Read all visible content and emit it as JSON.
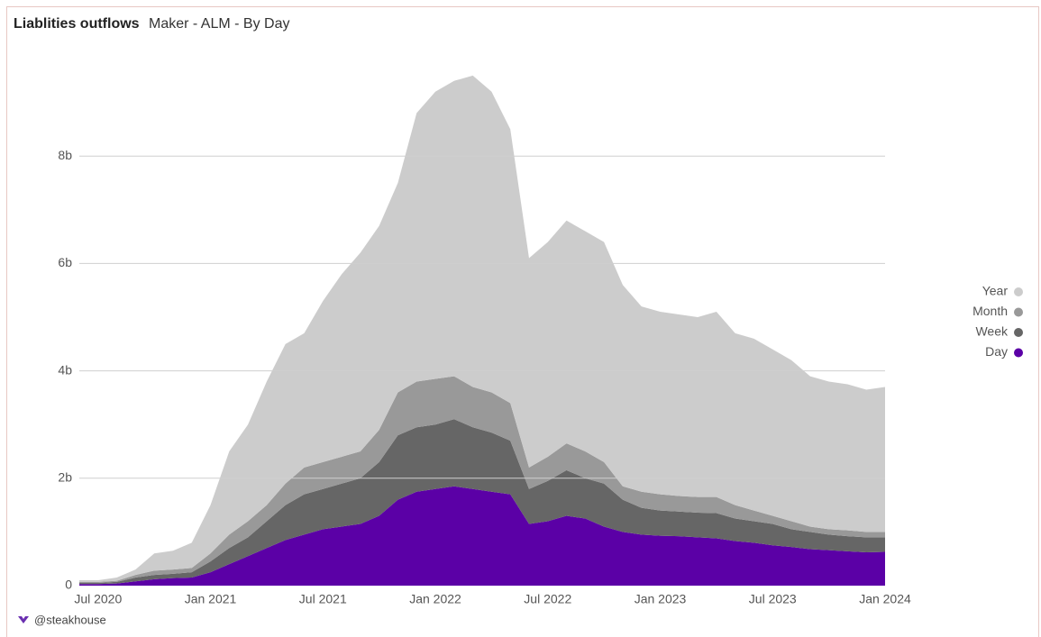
{
  "chart_data": {
    "type": "area",
    "stacked": true,
    "title": "Liablities outflows",
    "subtitle": "Maker - ALM - By Day",
    "footer": "@steakhouse",
    "x": [
      "2020-06",
      "2020-07",
      "2020-08",
      "2020-09",
      "2020-10",
      "2020-11",
      "2020-12",
      "2021-01",
      "2021-02",
      "2021-03",
      "2021-04",
      "2021-05",
      "2021-06",
      "2021-07",
      "2021-08",
      "2021-09",
      "2021-10",
      "2021-11",
      "2021-12",
      "2022-01",
      "2022-02",
      "2022-03",
      "2022-04",
      "2022-05",
      "2022-06",
      "2022-07",
      "2022-08",
      "2022-09",
      "2022-10",
      "2022-11",
      "2022-12",
      "2023-01",
      "2023-02",
      "2023-03",
      "2023-04",
      "2023-05",
      "2023-06",
      "2023-07",
      "2023-08",
      "2023-09",
      "2023-10",
      "2023-11",
      "2023-12",
      "2024-01"
    ],
    "series": [
      {
        "name": "Day",
        "color": "#5b00a6",
        "values": [
          0.03,
          0.03,
          0.04,
          0.08,
          0.12,
          0.14,
          0.15,
          0.25,
          0.4,
          0.55,
          0.7,
          0.85,
          0.95,
          1.05,
          1.1,
          1.15,
          1.3,
          1.6,
          1.75,
          1.8,
          1.85,
          1.8,
          1.75,
          1.7,
          1.15,
          1.2,
          1.3,
          1.25,
          1.1,
          1.0,
          0.95,
          0.93,
          0.92,
          0.9,
          0.88,
          0.83,
          0.8,
          0.75,
          0.72,
          0.68,
          0.66,
          0.64,
          0.62,
          0.63
        ]
      },
      {
        "name": "Week",
        "color": "#666666",
        "values": [
          0.02,
          0.02,
          0.03,
          0.07,
          0.08,
          0.08,
          0.1,
          0.2,
          0.3,
          0.35,
          0.5,
          0.65,
          0.75,
          0.75,
          0.8,
          0.85,
          1.0,
          1.2,
          1.2,
          1.2,
          1.25,
          1.15,
          1.1,
          1.0,
          0.65,
          0.75,
          0.85,
          0.75,
          0.8,
          0.6,
          0.5,
          0.47,
          0.46,
          0.46,
          0.47,
          0.42,
          0.4,
          0.4,
          0.33,
          0.32,
          0.29,
          0.28,
          0.28,
          0.27
        ]
      },
      {
        "name": "Month",
        "color": "#999999",
        "values": [
          0.02,
          0.02,
          0.02,
          0.05,
          0.08,
          0.08,
          0.08,
          0.15,
          0.25,
          0.3,
          0.3,
          0.4,
          0.5,
          0.5,
          0.5,
          0.5,
          0.6,
          0.8,
          0.85,
          0.85,
          0.8,
          0.75,
          0.75,
          0.7,
          0.4,
          0.45,
          0.5,
          0.5,
          0.4,
          0.25,
          0.3,
          0.3,
          0.29,
          0.29,
          0.3,
          0.25,
          0.2,
          0.15,
          0.15,
          0.1,
          0.1,
          0.11,
          0.1,
          0.1
        ]
      },
      {
        "name": "Year",
        "color": "#cccccc",
        "values": [
          0.03,
          0.03,
          0.06,
          0.1,
          0.32,
          0.35,
          0.47,
          0.9,
          1.55,
          1.8,
          2.3,
          2.6,
          2.5,
          3.0,
          3.4,
          3.7,
          3.8,
          3.9,
          5.0,
          5.35,
          5.5,
          5.8,
          5.6,
          5.1,
          3.9,
          4.0,
          4.15,
          4.1,
          4.1,
          3.75,
          3.45,
          3.4,
          3.38,
          3.35,
          3.45,
          3.2,
          3.2,
          3.1,
          3.0,
          2.8,
          2.75,
          2.72,
          2.65,
          2.7
        ]
      }
    ],
    "xlim": [
      "2020-06",
      "2024-01"
    ],
    "xticks": [
      {
        "value": "2020-07",
        "label": "Jul 2020"
      },
      {
        "value": "2021-01",
        "label": "Jan 2021"
      },
      {
        "value": "2021-07",
        "label": "Jul 2021"
      },
      {
        "value": "2022-01",
        "label": "Jan 2022"
      },
      {
        "value": "2022-07",
        "label": "Jul 2022"
      },
      {
        "value": "2023-01",
        "label": "Jan 2023"
      },
      {
        "value": "2023-07",
        "label": "Jul 2023"
      },
      {
        "value": "2024-01",
        "label": "Jan 2024"
      }
    ],
    "ylim": [
      0,
      9.9
    ],
    "yticks": [
      0,
      {
        "value": 2,
        "label": "2b"
      },
      {
        "value": 4,
        "label": "4b"
      },
      {
        "value": 6,
        "label": "6b"
      },
      {
        "value": 8,
        "label": "8b"
      }
    ],
    "grid": true,
    "legend": "right"
  }
}
